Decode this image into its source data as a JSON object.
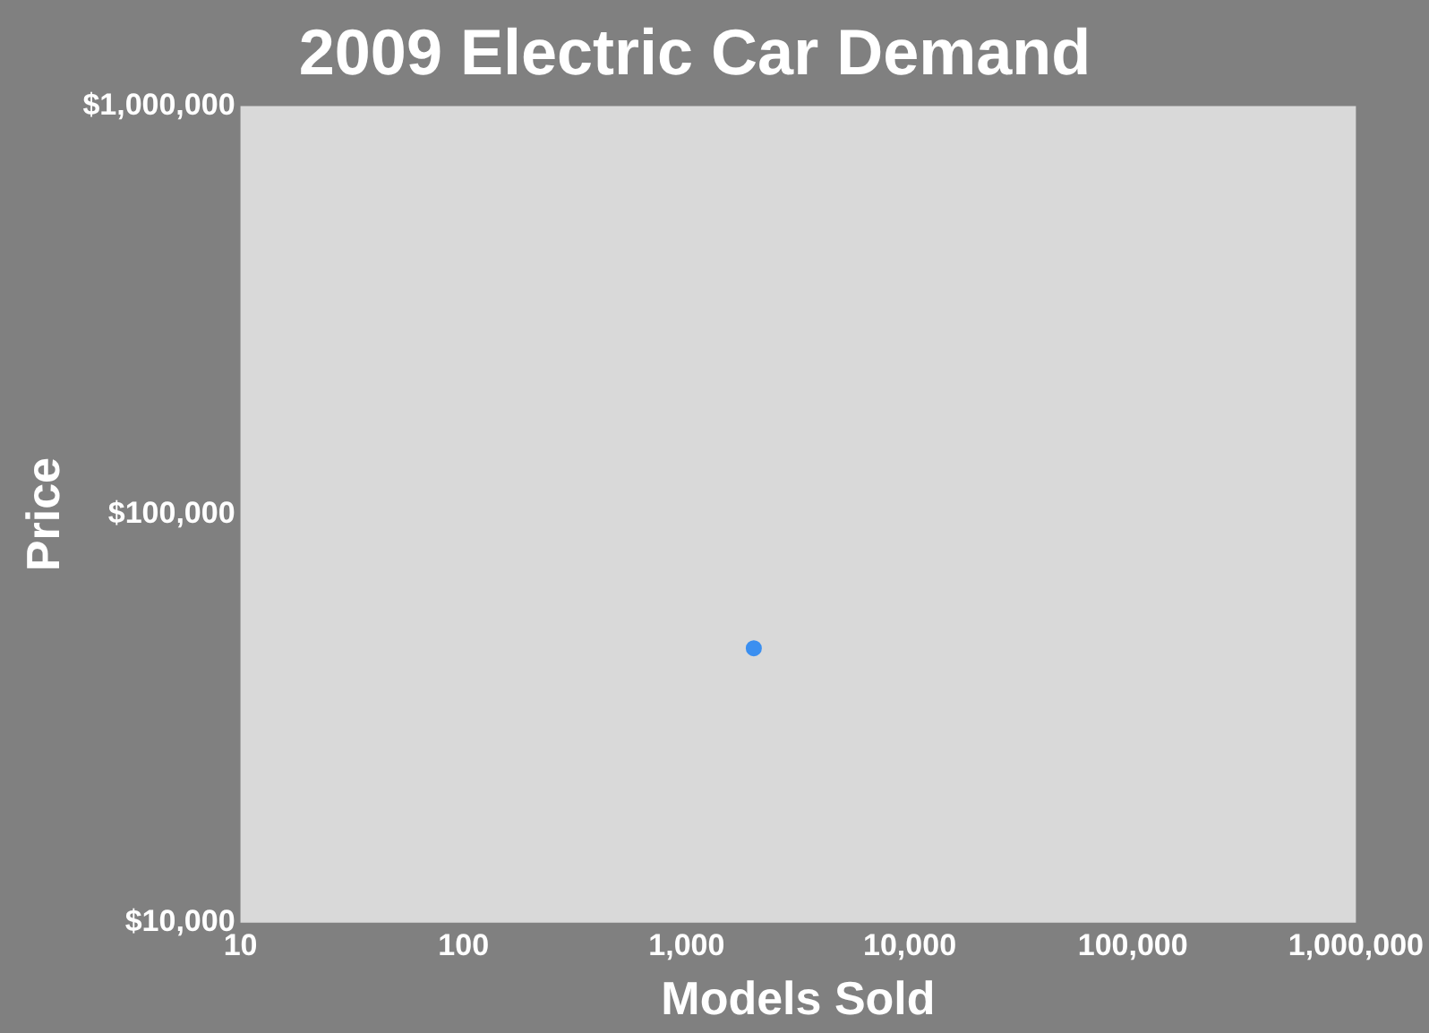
{
  "chart_data": {
    "type": "scatter",
    "title": "2009 Electric Car Demand",
    "xlabel": "Models Sold",
    "ylabel": "Price",
    "x": [
      2000
    ],
    "values": [
      47000
    ],
    "color": "#3b8ff0",
    "marker": "circle",
    "log": "xy",
    "grid": false,
    "xlim": [
      10,
      1000000
    ],
    "ylim": [
      10000,
      1000000
    ],
    "xticks": [
      10,
      100,
      {
        "value": 1000,
        "label": "1,000"
      },
      {
        "value": 10000,
        "label": "10,000"
      },
      {
        "value": 100000,
        "label": "100,000"
      },
      {
        "value": 1000000,
        "label": "1,000,000"
      }
    ],
    "yticks": [
      {
        "value": 10000,
        "label": "$10,000"
      },
      {
        "value": 100000,
        "label": "$100,000"
      },
      {
        "value": 1000000,
        "label": "$1,000,000"
      }
    ]
  }
}
